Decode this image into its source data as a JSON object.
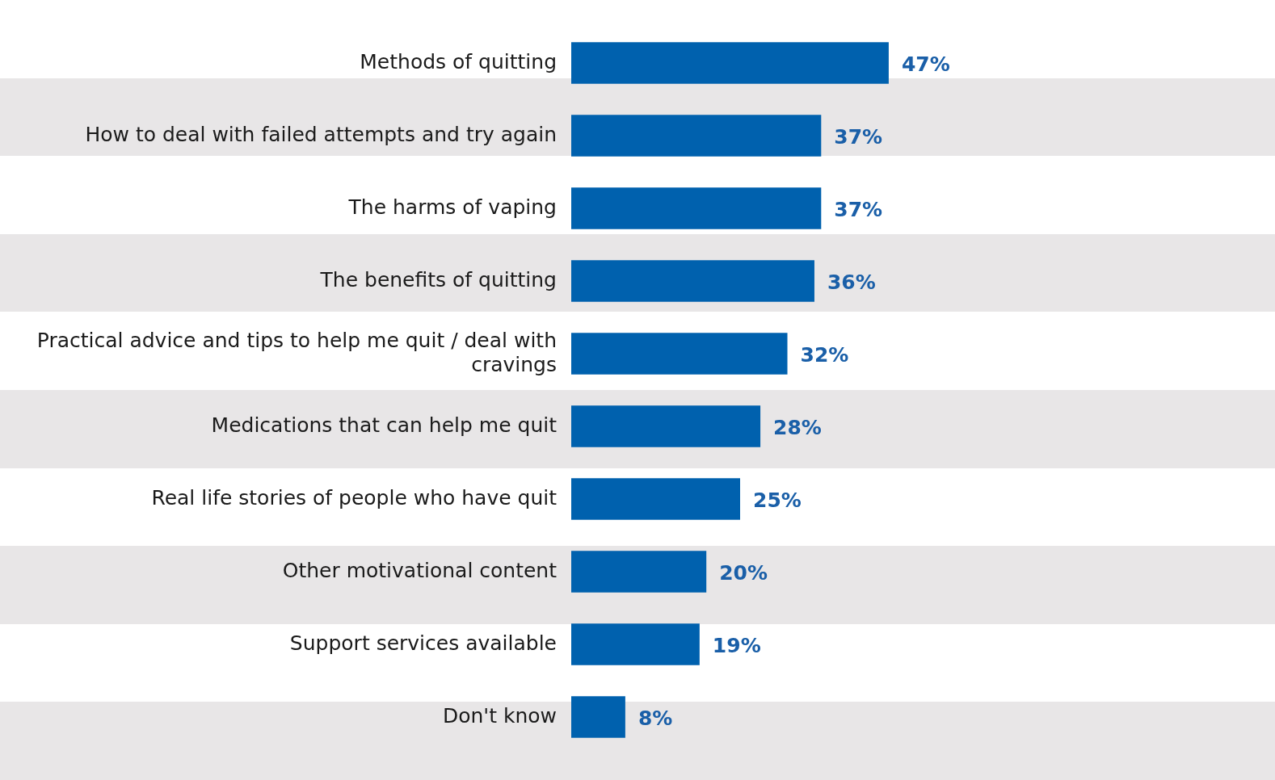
{
  "chart_data": {
    "type": "bar",
    "orientation": "horizontal",
    "categories": [
      "Methods of quitting",
      "How to deal with failed attempts and try again",
      "The harms of vaping",
      "The benefits of quitting",
      "Practical advice and tips to help me quit / deal with cravings",
      "Medications that can help me quit",
      "Real life stories of people who have quit",
      "Other motivational content",
      "Support services available",
      "Don't know"
    ],
    "values": [
      47,
      37,
      37,
      36,
      32,
      28,
      25,
      20,
      19,
      8
    ],
    "value_labels": [
      "47%",
      "37%",
      "37%",
      "36%",
      "32%",
      "28%",
      "25%",
      "20%",
      "19%",
      "8%"
    ],
    "color": "#0061ae",
    "grid": false,
    "legend": false,
    "tick_labels": "y"
  }
}
